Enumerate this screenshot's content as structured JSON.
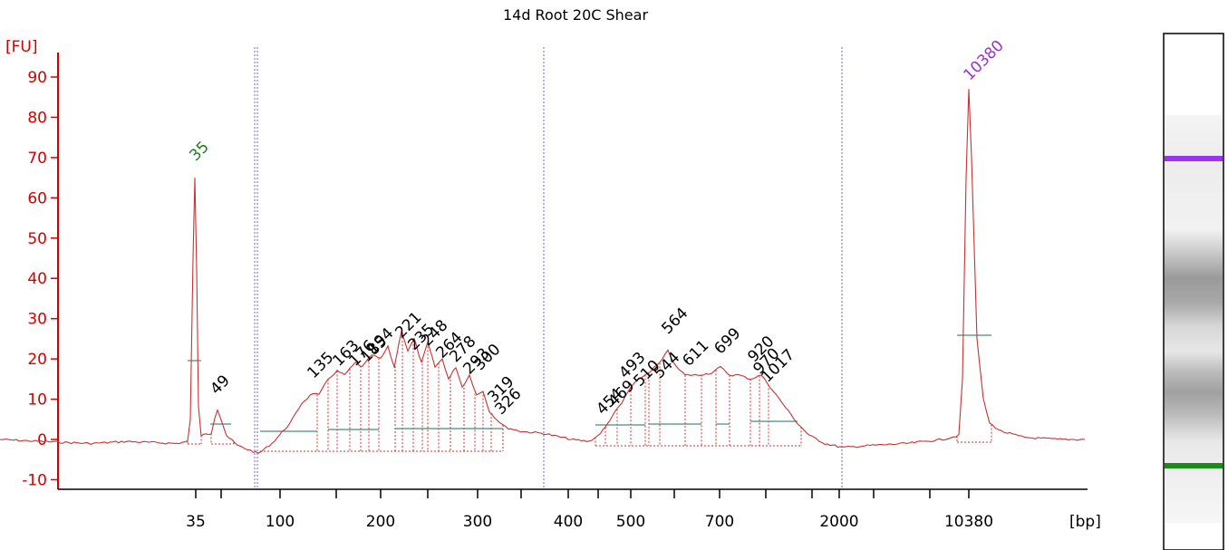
{
  "chart_data": {
    "type": "line",
    "title": "14d Root 20C Shear",
    "ylabel": "[FU]",
    "xlabel": "[bp]",
    "ylim": [
      -12,
      95
    ],
    "yticks": [
      -10,
      0,
      10,
      20,
      30,
      40,
      50,
      60,
      70,
      80,
      90
    ],
    "xtick_labels": [
      "35",
      "100",
      "200",
      "300",
      "400",
      "500",
      "700",
      "2000",
      "10380"
    ],
    "trace_color": "#c83232",
    "axis_color": "#d40000",
    "series": [
      {
        "values": [
          {
            "x": 0,
            "y": 0
          },
          {
            "x": 45,
            "y": -0.5
          },
          {
            "x": 100,
            "y": -1
          },
          {
            "x": 140,
            "y": -0.5
          },
          {
            "x": 195,
            "y": -1
          },
          {
            "x": 207,
            "y": -0.5
          },
          {
            "x": 210,
            "y": 5
          },
          {
            "x": 213,
            "y": 45
          },
          {
            "x": 215,
            "y": 65
          },
          {
            "x": 217,
            "y": 42
          },
          {
            "x": 219,
            "y": 8
          },
          {
            "x": 222,
            "y": 1
          },
          {
            "x": 233,
            "y": 1.5
          },
          {
            "x": 237,
            "y": 5.5
          },
          {
            "x": 240,
            "y": 7.5
          },
          {
            "x": 244,
            "y": 5
          },
          {
            "x": 250,
            "y": 1
          },
          {
            "x": 262,
            "y": -1.5
          },
          {
            "x": 285,
            "y": -3.5
          },
          {
            "x": 300,
            "y": -1
          },
          {
            "x": 320,
            "y": 4
          },
          {
            "x": 333,
            "y": 9
          },
          {
            "x": 345,
            "y": 11.5
          },
          {
            "x": 352,
            "y": 11
          },
          {
            "x": 362,
            "y": 15
          },
          {
            "x": 372,
            "y": 17
          },
          {
            "x": 380,
            "y": 16
          },
          {
            "x": 392,
            "y": 19
          },
          {
            "x": 400,
            "y": 18
          },
          {
            "x": 410,
            "y": 21
          },
          {
            "x": 420,
            "y": 20
          },
          {
            "x": 428,
            "y": 23
          },
          {
            "x": 435,
            "y": 18
          },
          {
            "x": 443,
            "y": 27
          },
          {
            "x": 450,
            "y": 22
          },
          {
            "x": 457,
            "y": 25
          },
          {
            "x": 465,
            "y": 19
          },
          {
            "x": 472,
            "y": 24
          },
          {
            "x": 480,
            "y": 18
          },
          {
            "x": 488,
            "y": 20
          },
          {
            "x": 495,
            "y": 15
          },
          {
            "x": 503,
            "y": 18
          },
          {
            "x": 510,
            "y": 13
          },
          {
            "x": 518,
            "y": 16
          },
          {
            "x": 526,
            "y": 11
          },
          {
            "x": 533,
            "y": 12
          },
          {
            "x": 540,
            "y": 7
          },
          {
            "x": 548,
            "y": 5
          },
          {
            "x": 558,
            "y": 3
          },
          {
            "x": 575,
            "y": 2
          },
          {
            "x": 600,
            "y": 1.5
          },
          {
            "x": 630,
            "y": 0
          },
          {
            "x": 650,
            "y": -0.5
          },
          {
            "x": 660,
            "y": 1
          },
          {
            "x": 668,
            "y": 3
          },
          {
            "x": 676,
            "y": 6
          },
          {
            "x": 686,
            "y": 9
          },
          {
            "x": 696,
            "y": 13
          },
          {
            "x": 705,
            "y": 15
          },
          {
            "x": 715,
            "y": 16.5
          },
          {
            "x": 728,
            "y": 19
          },
          {
            "x": 737,
            "y": 22
          },
          {
            "x": 746,
            "y": 18
          },
          {
            "x": 756,
            "y": 16
          },
          {
            "x": 770,
            "y": 16
          },
          {
            "x": 785,
            "y": 16.5
          },
          {
            "x": 795,
            "y": 18
          },
          {
            "x": 805,
            "y": 16
          },
          {
            "x": 815,
            "y": 16
          },
          {
            "x": 828,
            "y": 15
          },
          {
            "x": 840,
            "y": 16
          },
          {
            "x": 850,
            "y": 13
          },
          {
            "x": 860,
            "y": 10
          },
          {
            "x": 870,
            "y": 7
          },
          {
            "x": 880,
            "y": 4
          },
          {
            "x": 893,
            "y": 1
          },
          {
            "x": 910,
            "y": -1
          },
          {
            "x": 930,
            "y": -2
          },
          {
            "x": 960,
            "y": -1.5
          },
          {
            "x": 1000,
            "y": -1
          },
          {
            "x": 1040,
            "y": 0
          },
          {
            "x": 1058,
            "y": 1
          },
          {
            "x": 1062,
            "y": 15
          },
          {
            "x": 1066,
            "y": 65
          },
          {
            "x": 1069,
            "y": 87
          },
          {
            "x": 1072,
            "y": 70
          },
          {
            "x": 1078,
            "y": 25
          },
          {
            "x": 1085,
            "y": 10
          },
          {
            "x": 1092,
            "y": 4
          },
          {
            "x": 1105,
            "y": 2
          },
          {
            "x": 1130,
            "y": 0.5
          },
          {
            "x": 1170,
            "y": 0
          },
          {
            "x": 1197,
            "y": 0
          }
        ]
      }
    ],
    "peak_labels": [
      {
        "text": "35",
        "x": 216,
        "y": 69,
        "color": "#1a7f1a"
      },
      {
        "text": "49",
        "x": 239,
        "y": 11,
        "color": "#000000"
      },
      {
        "text": "135",
        "x": 346,
        "y": 15,
        "color": "#000000"
      },
      {
        "text": "163",
        "x": 374,
        "y": 18,
        "color": "#000000"
      },
      {
        "text": "176",
        "x": 392,
        "y": 18,
        "color": "#000000"
      },
      {
        "text": "185",
        "x": 405,
        "y": 19,
        "color": "#000000"
      },
      {
        "text": "194",
        "x": 412,
        "y": 21,
        "color": "#000000"
      },
      {
        "text": "221",
        "x": 443,
        "y": 25,
        "color": "#000000"
      },
      {
        "text": "235",
        "x": 457,
        "y": 22,
        "color": "#000000"
      },
      {
        "text": "248",
        "x": 472,
        "y": 23,
        "color": "#000000"
      },
      {
        "text": "264",
        "x": 488,
        "y": 20,
        "color": "#000000"
      },
      {
        "text": "278",
        "x": 503,
        "y": 19,
        "color": "#000000"
      },
      {
        "text": "293",
        "x": 518,
        "y": 16,
        "color": "#000000"
      },
      {
        "text": "300",
        "x": 530,
        "y": 17,
        "color": "#000000"
      },
      {
        "text": "319",
        "x": 545,
        "y": 9,
        "color": "#000000"
      },
      {
        "text": "326",
        "x": 553,
        "y": 6,
        "color": "#000000"
      },
      {
        "text": "454",
        "x": 665,
        "y": 6,
        "color": "#000000"
      },
      {
        "text": "469",
        "x": 678,
        "y": 8,
        "color": "#000000"
      },
      {
        "text": "493",
        "x": 690,
        "y": 15,
        "color": "#000000"
      },
      {
        "text": "510",
        "x": 706,
        "y": 13,
        "color": "#000000"
      },
      {
        "text": "544",
        "x": 728,
        "y": 15,
        "color": "#000000"
      },
      {
        "text": "564",
        "x": 737,
        "y": 26,
        "color": "#000000"
      },
      {
        "text": "611",
        "x": 760,
        "y": 18,
        "color": "#000000"
      },
      {
        "text": "699",
        "x": 795,
        "y": 21,
        "color": "#000000"
      },
      {
        "text": "920",
        "x": 832,
        "y": 19,
        "color": "#000000"
      },
      {
        "text": "970",
        "x": 838,
        "y": 16,
        "color": "#000000"
      },
      {
        "text": "1017",
        "x": 847,
        "y": 14,
        "color": "#000000"
      },
      {
        "text": "10380",
        "x": 1070,
        "y": 89,
        "color": "#9933cc"
      }
    ],
    "region_markers_color": "#6666dd",
    "gel_lane": {
      "upper_marker_color": "#9933ee",
      "lower_marker_color": "#1a8a1a"
    }
  }
}
